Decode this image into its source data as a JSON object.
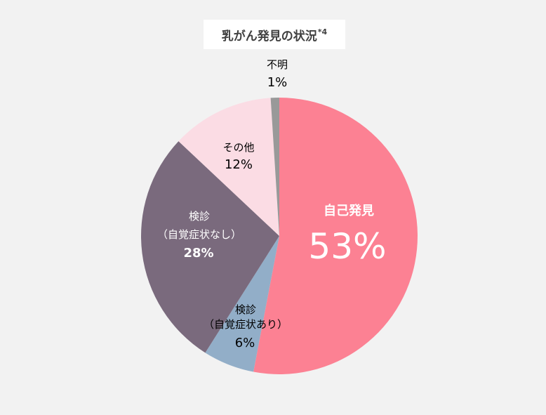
{
  "title": "乳がん発見の状況",
  "title_note": "*4",
  "chart_data": {
    "type": "pie",
    "slices": [
      {
        "label": "自己発見",
        "value": 53,
        "value_label": "53%",
        "color": "#fc8193"
      },
      {
        "label": "検診（自覚症状あり）",
        "value": 6,
        "value_label": "6%",
        "color": "#92aec8"
      },
      {
        "label": "検診（自覚症状なし）",
        "value": 28,
        "value_label": "28%",
        "color": "#7a6a7d"
      },
      {
        "label": "その他",
        "value": 12,
        "value_label": "12%",
        "color": "#fbdce4"
      },
      {
        "label": "不明",
        "value": 1,
        "value_label": "1%",
        "color": "#999999"
      }
    ],
    "label_lines": {
      "self": [
        "自己発見"
      ],
      "screen_symptom": [
        "検診",
        "（自覚症状あり）"
      ],
      "screen_no_symptom": [
        "検診",
        "（自覚症状なし）"
      ],
      "other": [
        "その他"
      ],
      "unknown": [
        "不明"
      ]
    }
  }
}
